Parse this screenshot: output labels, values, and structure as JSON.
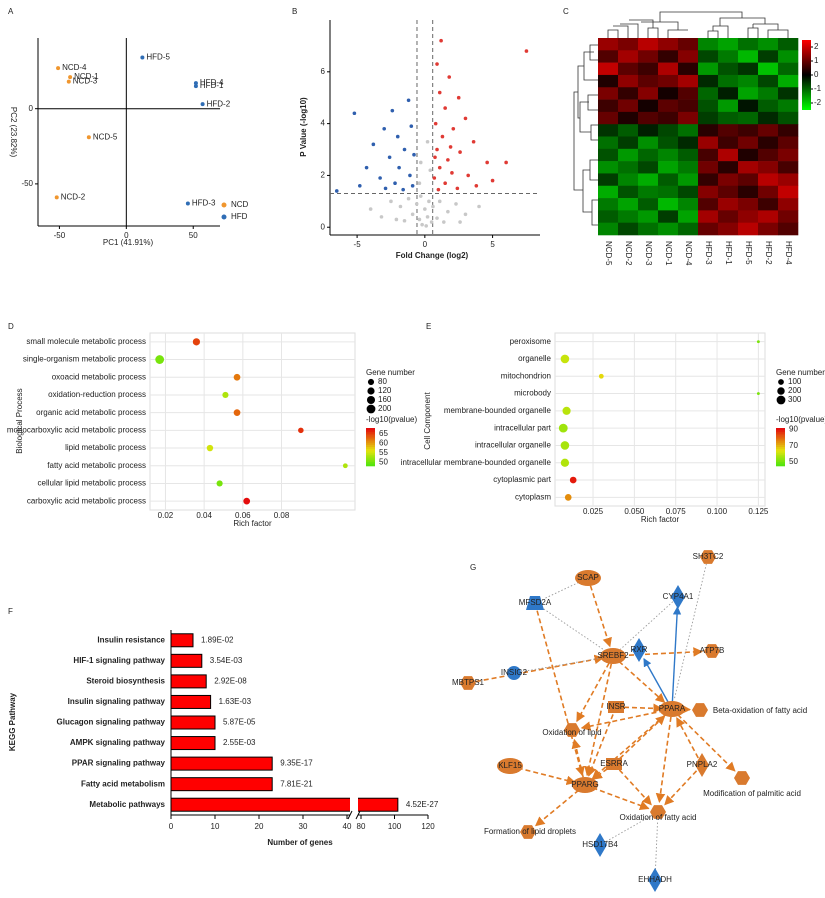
{
  "chart_data": [
    {
      "type": "scatter",
      "panel": "A",
      "xlabel": "PC1 (41.91%)",
      "ylabel": "PC2 (23.82%)",
      "xlim": [
        -66,
        70
      ],
      "ylim": [
        -78,
        47
      ],
      "xticks": [
        -50,
        0,
        50
      ],
      "yticks": [
        -50,
        0
      ],
      "zero_lines": true,
      "series": [
        {
          "name": "NCD",
          "color": "#f0962e",
          "labels": [
            "NCD-4",
            "NCD-1",
            "NCD-3",
            "NCD-5",
            "NCD-2"
          ],
          "x": [
            -51,
            -42,
            -43,
            -28,
            -52
          ],
          "values": [
            27,
            21,
            18,
            -19,
            -59
          ]
        },
        {
          "name": "HFD",
          "color": "#2f6db5",
          "labels": [
            "HFD-5",
            "HFD-4",
            "HFD-1",
            "HFD-2",
            "HFD-3"
          ],
          "x": [
            12,
            52,
            52,
            57,
            46
          ],
          "values": [
            34,
            17,
            15,
            3,
            -63
          ]
        }
      ]
    },
    {
      "type": "scatter",
      "panel": "B",
      "xlabel": "Fold Change (log2)",
      "ylabel": "P Value (-log10)",
      "xlim": [
        -7,
        8.5
      ],
      "ylim": [
        -0.3,
        8
      ],
      "xticks": [
        -5,
        0,
        5
      ],
      "yticks": [
        0,
        2,
        4,
        6
      ],
      "vlines": [
        -0.58,
        0.58
      ],
      "hline": 1.3,
      "series": [
        {
          "color": "#c8c8c8",
          "x": [
            -2.5,
            -1.8,
            -1.2,
            -0.6,
            -0.3,
            0,
            0.3,
            0.6,
            1.1,
            1.7,
            2.3,
            3.0,
            -3.2,
            -0.9,
            -0.4,
            0.2,
            0.5,
            0.9,
            1.4,
            -1.5,
            -0.2,
            0.1,
            2.6,
            -2.1,
            0.4,
            -0.3,
            0.2,
            -0.4,
            4.0,
            -4.0
          ],
          "values": [
            1.0,
            0.8,
            1.1,
            0.9,
            1.2,
            0.7,
            1.0,
            0.8,
            1.0,
            0.6,
            0.9,
            0.5,
            0.4,
            0.5,
            0.3,
            0.4,
            0.2,
            0.35,
            0.2,
            0.25,
            0.1,
            0.05,
            0.2,
            0.3,
            2.2,
            2.5,
            3.3,
            1.7,
            0.8,
            0.7
          ]
        },
        {
          "color": "#2f5fae",
          "x": [
            -5.2,
            -2.4,
            -1.2,
            -3.0,
            -1.0,
            -2.0,
            -3.8,
            -1.5,
            -0.8,
            -2.6,
            -4.3,
            -1.9,
            -1.1,
            -3.3,
            -2.2,
            -0.9,
            -6.5,
            -4.8,
            -1.6,
            -2.9
          ],
          "values": [
            4.4,
            4.5,
            4.9,
            3.8,
            3.9,
            3.5,
            3.2,
            3.0,
            2.8,
            2.7,
            2.3,
            2.3,
            2.0,
            1.9,
            1.7,
            1.6,
            1.4,
            1.6,
            1.45,
            1.5
          ]
        },
        {
          "color": "#e03a34",
          "x": [
            7.5,
            1.2,
            0.9,
            1.8,
            1.1,
            2.5,
            1.5,
            3.0,
            0.8,
            2.1,
            1.3,
            3.6,
            0.9,
            2.6,
            1.7,
            4.6,
            1.1,
            2.0,
            3.2,
            0.7,
            1.5,
            5.0,
            2.4,
            1.0,
            3.8,
            6.0,
            0.75,
            1.9
          ],
          "values": [
            6.8,
            7.2,
            6.3,
            5.8,
            5.2,
            5.0,
            4.6,
            4.2,
            4.0,
            3.8,
            3.5,
            3.3,
            3.0,
            2.9,
            2.6,
            2.5,
            2.3,
            2.1,
            2.0,
            1.9,
            1.7,
            1.8,
            1.5,
            1.45,
            1.6,
            2.5,
            2.7,
            3.1
          ]
        }
      ]
    },
    {
      "type": "heatmap",
      "panel": "C",
      "columns": [
        "NCD-5",
        "NCD-2",
        "NCD-3",
        "NCD-1",
        "NCD-4",
        "HFD-3",
        "HFD-1",
        "HFD-5",
        "HFD-2",
        "HFD-4"
      ],
      "clim": [
        -2.5,
        2.5
      ],
      "cticks": [
        2,
        1,
        0,
        -1,
        -2
      ],
      "values": [
        [
          1.5,
          1.2,
          1.8,
          1.4,
          1.0,
          -1.3,
          -1.6,
          -1.1,
          -1.4,
          -0.9
        ],
        [
          0.8,
          1.6,
          1.1,
          0.5,
          1.3,
          -0.7,
          -1.2,
          -1.8,
          -0.6,
          -1.4
        ],
        [
          1.9,
          0.9,
          0.6,
          1.7,
          0.4,
          -1.5,
          -0.8,
          -0.5,
          -1.9,
          -1.0
        ],
        [
          0.3,
          1.4,
          0.9,
          1.1,
          1.6,
          -0.4,
          -1.1,
          -1.3,
          -0.7,
          -1.7
        ],
        [
          1.2,
          0.5,
          1.3,
          0.2,
          0.8,
          -1.0,
          -0.3,
          -1.6,
          -1.2,
          -0.5
        ],
        [
          0.6,
          1.1,
          0.2,
          0.9,
          0.7,
          -0.8,
          -1.5,
          -0.2,
          -0.9,
          -1.2
        ],
        [
          1.0,
          0.3,
          0.8,
          0.6,
          1.2,
          -0.6,
          -0.9,
          -1.0,
          -0.4,
          -0.8
        ],
        [
          -0.5,
          -0.9,
          -0.3,
          -0.7,
          -1.1,
          0.4,
          0.8,
          0.6,
          1.0,
          0.5
        ],
        [
          -1.1,
          -0.6,
          -1.4,
          -0.8,
          -0.4,
          1.5,
          0.6,
          1.1,
          0.4,
          0.9
        ],
        [
          -0.8,
          -1.5,
          -1.0,
          -1.3,
          -0.9,
          0.7,
          1.7,
          0.3,
          0.8,
          1.2
        ],
        [
          -1.4,
          -1.1,
          -0.7,
          -1.6,
          -1.2,
          1.1,
          0.4,
          1.6,
          1.3,
          0.7
        ],
        [
          -0.6,
          -1.3,
          -1.7,
          -0.9,
          -1.5,
          0.5,
          1.2,
          0.9,
          1.8,
          1.5
        ],
        [
          -1.7,
          -0.8,
          -1.2,
          -1.1,
          -0.7,
          1.3,
          0.9,
          0.4,
          1.1,
          1.9
        ],
        [
          -1.2,
          -1.6,
          -0.9,
          -1.8,
          -1.3,
          0.8,
          1.5,
          1.2,
          0.6,
          1.4
        ],
        [
          -0.9,
          -1.2,
          -1.5,
          -0.6,
          -1.6,
          1.6,
          1.0,
          1.4,
          1.7,
          1.1
        ],
        [
          -1.3,
          -0.7,
          -1.1,
          -1.4,
          -1.0,
          1.0,
          1.3,
          1.8,
          1.2,
          0.8
        ]
      ]
    },
    {
      "type": "dot",
      "panel": "D",
      "ylabel": "Biological Process",
      "xlabel": "Rich factor",
      "categories": [
        "small molecule metabolic process",
        "single-organism metabolic process",
        "oxoacid metabolic process",
        "oxidation-reduction process",
        "organic acid metabolic process",
        "monocarboxylic acid metabolic process",
        "lipid metabolic process",
        "fatty acid metabolic process",
        "cellular lipid metabolic process",
        "carboxylic acid metabolic process"
      ],
      "values": [
        0.036,
        0.017,
        0.057,
        0.051,
        0.057,
        0.09,
        0.043,
        0.113,
        0.048,
        0.062
      ],
      "gene_number": [
        120,
        200,
        100,
        80,
        100,
        60,
        90,
        40,
        80,
        100
      ],
      "neg_log10_pvalue": [
        65,
        50,
        62,
        53,
        63,
        66,
        55,
        53,
        50,
        68
      ],
      "xlim": [
        0.012,
        0.118
      ],
      "xticks": [
        0.02,
        0.04,
        0.06,
        0.08
      ],
      "size_title": "Gene number",
      "size_legend": [
        80,
        120,
        160,
        200
      ],
      "size_max": 200,
      "color_title": "-log10(pvalue)",
      "clim": [
        48,
        68
      ],
      "cticks": [
        65,
        60,
        55,
        50
      ]
    },
    {
      "type": "dot",
      "panel": "E",
      "ylabel": "Cell Component",
      "xlabel": "Rich factor",
      "categories": [
        "peroxisome",
        "organelle",
        "mitochondrion",
        "microbody",
        "membrane-bounded organelle",
        "intracellular part",
        "intracellular organelle",
        "intracellular membrane-bounded organelle",
        "cytoplasmic part",
        "cytoplasm"
      ],
      "values": [
        0.125,
        0.008,
        0.03,
        0.125,
        0.009,
        0.007,
        0.008,
        0.008,
        0.013,
        0.01
      ],
      "gene_number": [
        10,
        280,
        60,
        10,
        250,
        300,
        280,
        260,
        150,
        150
      ],
      "neg_log10_pvalue": [
        50,
        60,
        65,
        50,
        58,
        55,
        56,
        57,
        90,
        75
      ],
      "xlim": [
        0.002,
        0.129
      ],
      "xticks": [
        0.025,
        {
          "value": 0.05,
          "label": "0.050"
        },
        0.075,
        {
          "value": 0.1,
          "label": "0.100"
        },
        0.125
      ],
      "size_title": "Gene number",
      "size_legend": [
        100,
        200,
        300
      ],
      "size_max": 300,
      "color_title": "-log10(pvalue)",
      "clim": [
        45,
        92
      ],
      "cticks": [
        90,
        70,
        50
      ]
    },
    {
      "type": "bar",
      "panel": "F",
      "ylabel": "KEGG Pathway",
      "xlabel": "Number of genes",
      "color": "#ff0000",
      "categories": [
        "Insulin resistance",
        "HIF-1 signaling pathway",
        "Steroid biosynthesis",
        "Insulin signaling pathway",
        "Glucagon signaling pathway",
        "AMPK signaling pathway",
        "PPAR signaling pathway",
        "Fatty acid metabolism",
        "Metabolic pathways"
      ],
      "values": [
        5,
        7,
        8,
        9,
        10,
        10,
        23,
        23,
        102
      ],
      "pvalue_labels": [
        "1.89E-02",
        "3.54E-03",
        "2.92E-08",
        "1.63E-03",
        "5.87E-05",
        "2.55E-03",
        "9.35E-17",
        "7.81E-21",
        "4.52E-27"
      ],
      "xlim": [
        0,
        120
      ],
      "xbreak": [
        40,
        80
      ],
      "xticks": [
        0,
        10,
        20,
        30,
        40,
        80,
        100,
        120
      ]
    },
    {
      "type": "network",
      "panel": "G",
      "nodes": [
        {
          "label": "SH3TC2",
          "color": "#d97a2e"
        },
        {
          "label": "SCAP",
          "color": "#d97a2e"
        },
        {
          "label": "MFSD2A",
          "color": "#2f78c8"
        },
        {
          "label": "CYP4A1",
          "color": "#2f78c8"
        },
        {
          "label": "SREBF2",
          "color": "#d97a2e"
        },
        {
          "label": "RXR",
          "color": "#2f78c8"
        },
        {
          "label": "ATP7B",
          "color": "#d97a2e"
        },
        {
          "label": "MBTPS1",
          "color": "#d97a2e"
        },
        {
          "label": "INSIG2",
          "color": "#2f78c8"
        },
        {
          "label": "INSR",
          "color": "#d97a2e"
        },
        {
          "label": "PPARA",
          "color": "#d97a2e"
        },
        {
          "label": "Beta-oxidation of fatty acid",
          "color": "#d97a2e"
        },
        {
          "label": "Oxidation of lipid",
          "color": "#d97a2e"
        },
        {
          "label": "KLF15",
          "color": "#d97a2e"
        },
        {
          "label": "ESRRA",
          "color": "#d97a2e"
        },
        {
          "label": "PNPLA2",
          "color": "#d97a2e"
        },
        {
          "label": "PPARG",
          "color": "#d97a2e"
        },
        {
          "label": "Modification of palmitic acid",
          "color": "#d97a2e"
        },
        {
          "label": "Oxidation of fatty acid",
          "color": "#d97a2e"
        },
        {
          "label": "Formation of lipid droplets",
          "color": "#d97a2e"
        },
        {
          "label": "HSD17B4",
          "color": "#2f78c8"
        },
        {
          "label": "EHHADH",
          "color": "#2f78c8"
        }
      ]
    }
  ]
}
